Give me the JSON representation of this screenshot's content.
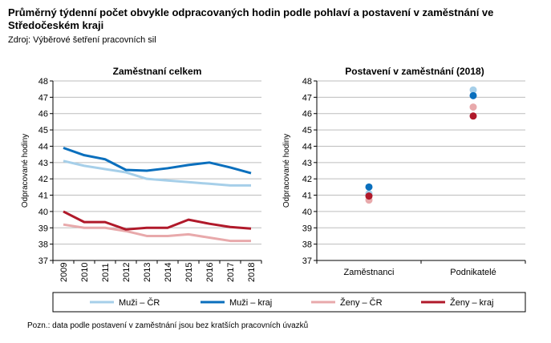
{
  "title": "Průměrný týdenní počet obvykle odpracovaných hodin podle pohlaví a postavení v zaměstnání ve Středočeském kraji",
  "source": "Zdroj: Výběrové šetření pracovních sil",
  "note": "Pozn.: data podle postavení v zaměstnání jsou bez kratších pracovních úvazků",
  "chart_data": [
    {
      "type": "line",
      "title": "Zaměstnaní celkem",
      "xlabel": "",
      "ylabel": "Odpracované hodiny",
      "ylim": [
        37,
        48
      ],
      "yticks": [
        "37",
        "38",
        "39",
        "40",
        "41",
        "42",
        "43",
        "44",
        "45",
        "46",
        "47",
        "48"
      ],
      "categories": [
        "2009",
        "2010",
        "2011",
        "2012",
        "2013",
        "2014",
        "2015",
        "2016",
        "2017",
        "2018"
      ],
      "series": [
        {
          "name": "Muži – ČR",
          "color": "#a6cfe9",
          "values": [
            43.1,
            42.8,
            42.6,
            42.4,
            42.0,
            41.9,
            41.8,
            41.7,
            41.6,
            41.6
          ]
        },
        {
          "name": "Muži – kraj",
          "color": "#0a6fbd",
          "values": [
            43.9,
            43.45,
            43.2,
            42.55,
            42.5,
            42.65,
            42.85,
            43.0,
            42.7,
            42.35
          ]
        },
        {
          "name": "Ženy – ČR",
          "color": "#e8a9ab",
          "values": [
            39.2,
            39.0,
            39.0,
            38.8,
            38.5,
            38.5,
            38.6,
            38.4,
            38.2,
            38.2
          ]
        },
        {
          "name": "Ženy – kraj",
          "color": "#b0192a",
          "values": [
            40.0,
            39.35,
            39.35,
            38.9,
            39.0,
            39.0,
            39.5,
            39.25,
            39.05,
            38.95
          ]
        }
      ],
      "grid": true
    },
    {
      "type": "scatter",
      "title": "Postavení v zaměstnání (2018)",
      "ylabel": "Odpracované hodiny",
      "ylim": [
        37,
        48
      ],
      "yticks": [
        "37",
        "38",
        "39",
        "40",
        "41",
        "42",
        "43",
        "44",
        "45",
        "46",
        "47",
        "48"
      ],
      "categories": [
        "Zaměstnanci",
        "Podnikatelé"
      ],
      "series": [
        {
          "name": "Muži – ČR",
          "color": "#a6cfe9",
          "values": [
            41.1,
            47.45
          ]
        },
        {
          "name": "Muži – kraj",
          "color": "#0a6fbd",
          "values": [
            41.5,
            47.1
          ]
        },
        {
          "name": "Ženy – ČR",
          "color": "#e8a9ab",
          "values": [
            40.7,
            46.4
          ]
        },
        {
          "name": "Ženy – kraj",
          "color": "#b0192a",
          "values": [
            40.95,
            45.85
          ]
        }
      ],
      "grid": true
    }
  ],
  "legend": [
    "Muži – ČR",
    "Muži – kraj",
    "Ženy – ČR",
    "Ženy – kraj"
  ]
}
